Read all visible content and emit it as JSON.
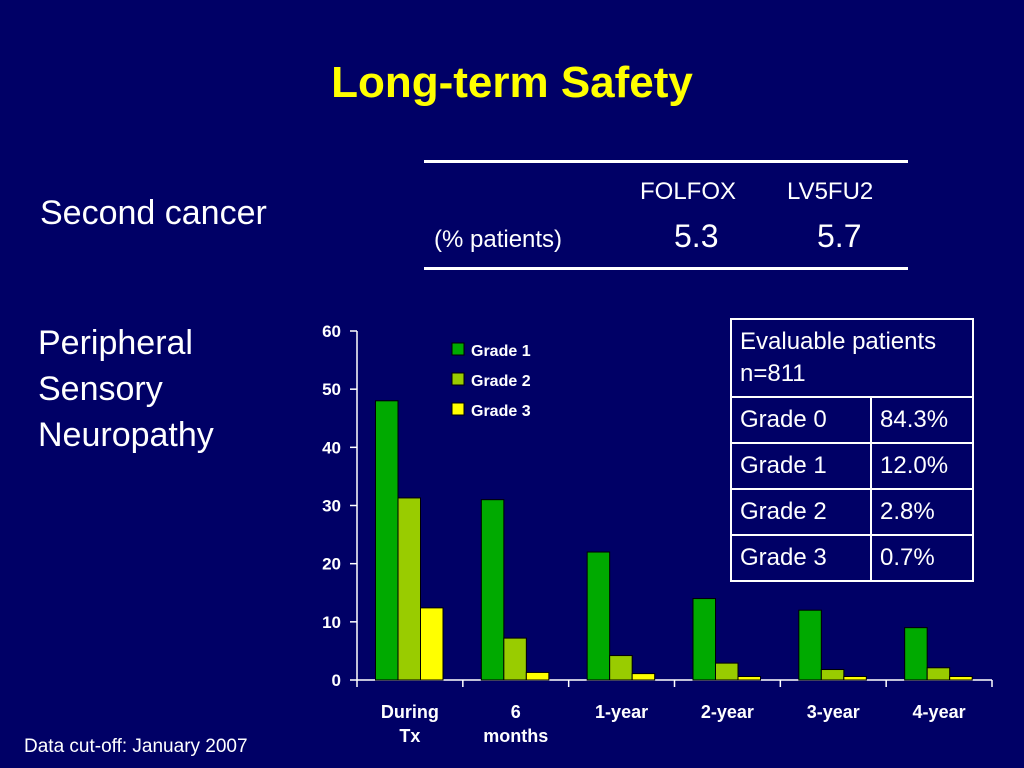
{
  "title": "Long-term Safety",
  "second_cancer": {
    "label": "Second cancer",
    "columns": [
      "FOLFOX",
      "LV5FU2"
    ],
    "row_label": "(% patients)",
    "values": [
      "5.3",
      "5.7"
    ]
  },
  "neuropathy": {
    "label_lines": [
      "Peripheral",
      "Sensory",
      "Neuropathy"
    ]
  },
  "evaluable_table": {
    "header": "Evaluable patients n=811",
    "rows": [
      {
        "grade": "Grade 0",
        "value": "84.3%"
      },
      {
        "grade": "Grade 1",
        "value": "12.0%"
      },
      {
        "grade": "Grade 2",
        "value": "2.8%"
      },
      {
        "grade": "Grade 3",
        "value": "0.7%"
      }
    ]
  },
  "chart_data": {
    "type": "bar",
    "categories": [
      [
        "During",
        "Tx"
      ],
      [
        "6",
        "months"
      ],
      [
        "1-year"
      ],
      [
        "2-year"
      ],
      [
        "3-year"
      ],
      [
        "4-year"
      ]
    ],
    "series": [
      {
        "name": "Grade 1",
        "color": "#00aa00",
        "values": [
          48,
          31,
          22,
          14,
          12,
          9
        ]
      },
      {
        "name": "Grade 2",
        "color": "#99cc00",
        "values": [
          31.3,
          7.2,
          4.2,
          2.9,
          1.8,
          2.1
        ]
      },
      {
        "name": "Grade 3",
        "color": "#ffff00",
        "values": [
          12.4,
          1.3,
          1.1,
          0.6,
          0.6,
          0.6
        ]
      }
    ],
    "ylim": [
      0,
      60
    ],
    "yticks": [
      0,
      10,
      20,
      30,
      40,
      50,
      60
    ],
    "legend_position": "top-left",
    "grid": false
  },
  "footnote": "Data cut-off: January 2007"
}
